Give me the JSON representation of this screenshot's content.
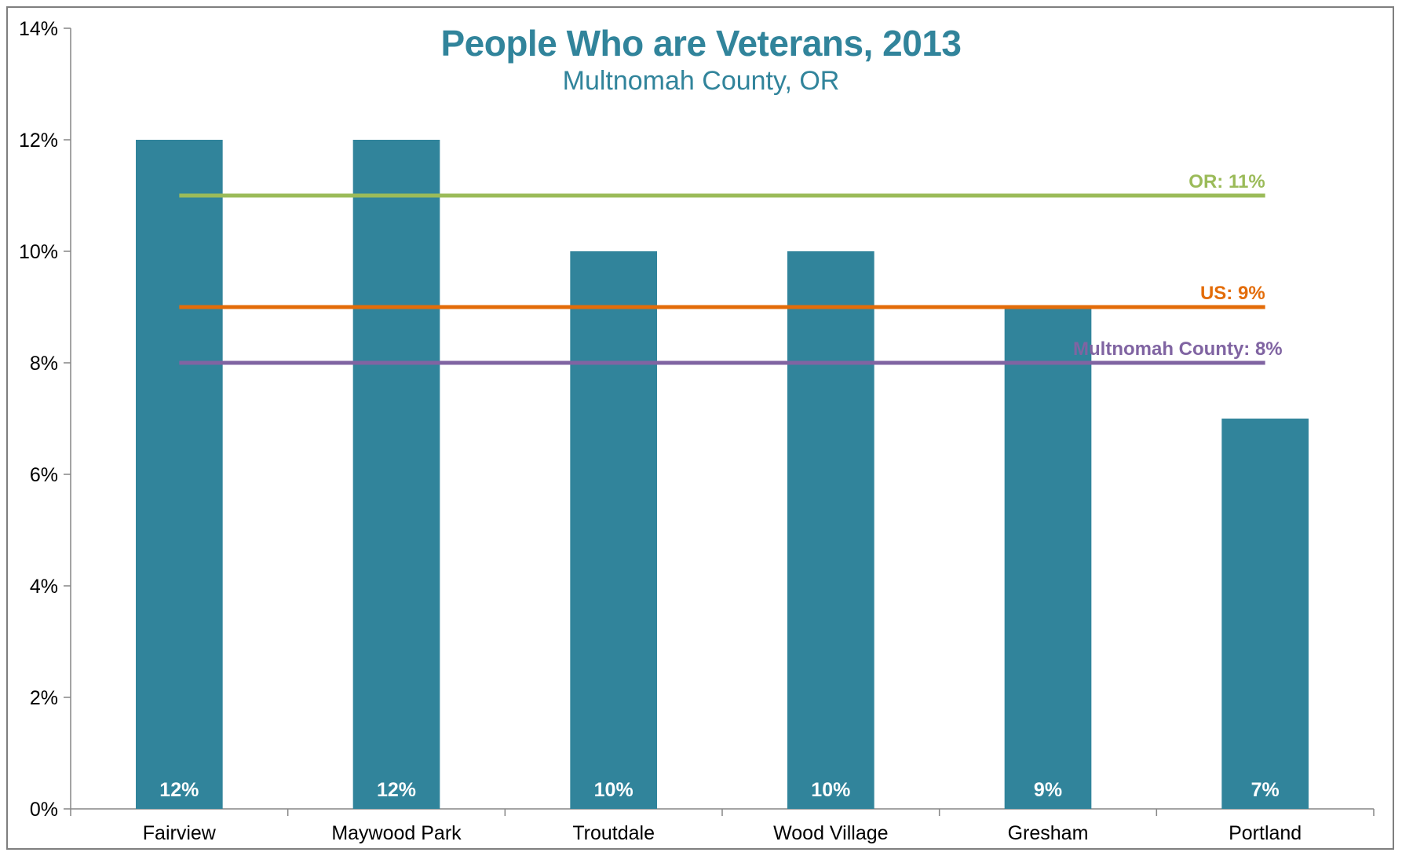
{
  "chart_data": {
    "type": "bar",
    "title": "People Who are Veterans, 2013",
    "subtitle": "Multnomah County, OR",
    "xlabel": "",
    "ylabel": "",
    "categories": [
      "Fairview",
      "Maywood Park",
      "Troutdale",
      "Wood Village",
      "Gresham",
      "Portland"
    ],
    "values": [
      12,
      12,
      10,
      10,
      9,
      7
    ],
    "data_labels": [
      "12%",
      "12%",
      "10%",
      "10%",
      "9%",
      "7%"
    ],
    "ylim": [
      0,
      14
    ],
    "yticks": [
      0,
      2,
      4,
      6,
      8,
      10,
      12,
      14
    ],
    "ytick_labels": [
      "0%",
      "2%",
      "4%",
      "6%",
      "8%",
      "10%",
      "12%",
      "14%"
    ],
    "reference_lines": [
      {
        "label": "OR: 11%",
        "value": 11,
        "color": "#9bbb59"
      },
      {
        "label": "US: 9%",
        "value": 9,
        "color": "#e36c09"
      },
      {
        "label": "Multnomah County: 8%",
        "value": 8,
        "color": "#8064a2"
      }
    ],
    "bar_color": "#31849b",
    "grid": false,
    "legend": "none"
  }
}
